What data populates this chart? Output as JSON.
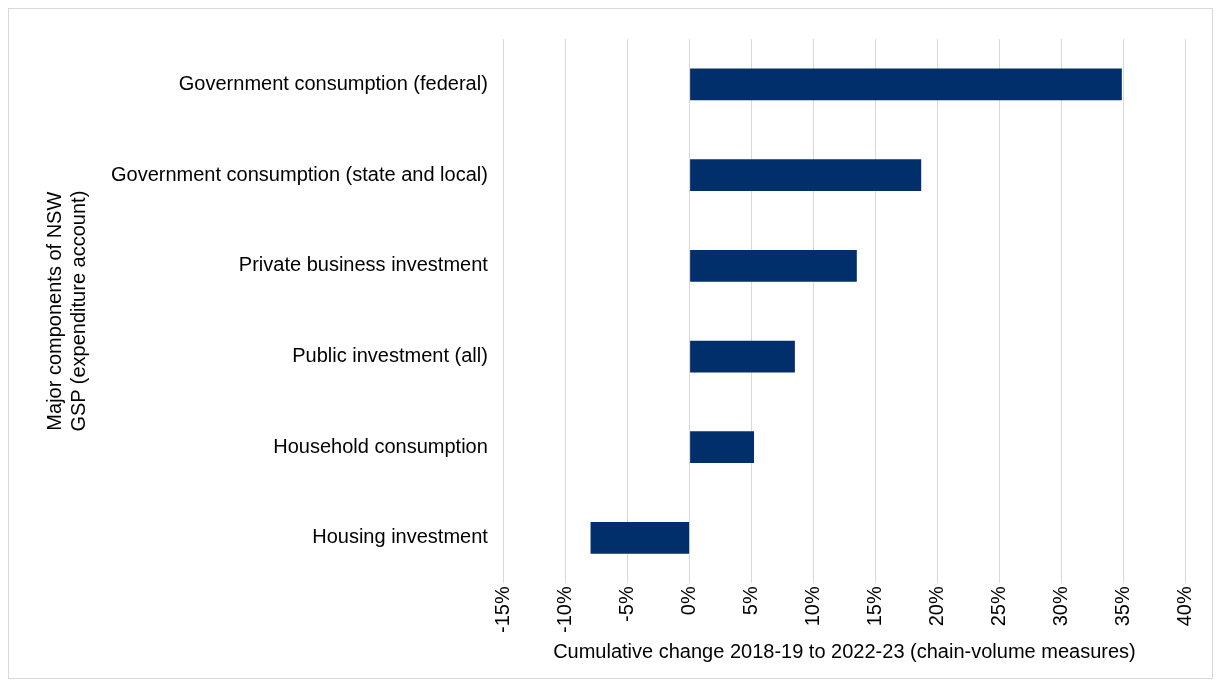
{
  "chart_data": {
    "type": "bar",
    "orientation": "horizontal",
    "categories": [
      "Government consumption (federal)",
      "Government consumption (state and local)",
      "Private business investment",
      "Public investment (all)",
      "Household consumption",
      "Housing investment"
    ],
    "values": [
      34.9,
      18.7,
      13.5,
      8.5,
      5.2,
      -8.0
    ],
    "color": "#002f6c",
    "xlim": [
      -15,
      40
    ],
    "xticks": [
      {
        "value": -15,
        "label": "-15%"
      },
      {
        "value": -10,
        "label": "-10%"
      },
      {
        "value": -5,
        "label": "-5%"
      },
      {
        "value": 0,
        "label": "0%"
      },
      {
        "value": 5,
        "label": "5%"
      },
      {
        "value": 10,
        "label": "10%"
      },
      {
        "value": 15,
        "label": "15%"
      },
      {
        "value": 20,
        "label": "20%"
      },
      {
        "value": 25,
        "label": "25%"
      },
      {
        "value": 30,
        "label": "30%"
      },
      {
        "value": 35,
        "label": "35%"
      },
      {
        "value": 40,
        "label": "40%"
      }
    ],
    "xlabel": "Cumulative change 2018-19 to 2022-23 (chain-volume measures)",
    "ylabel": "Major components of NSW GSP (expenditure account)",
    "grid": "x",
    "legend": false
  }
}
